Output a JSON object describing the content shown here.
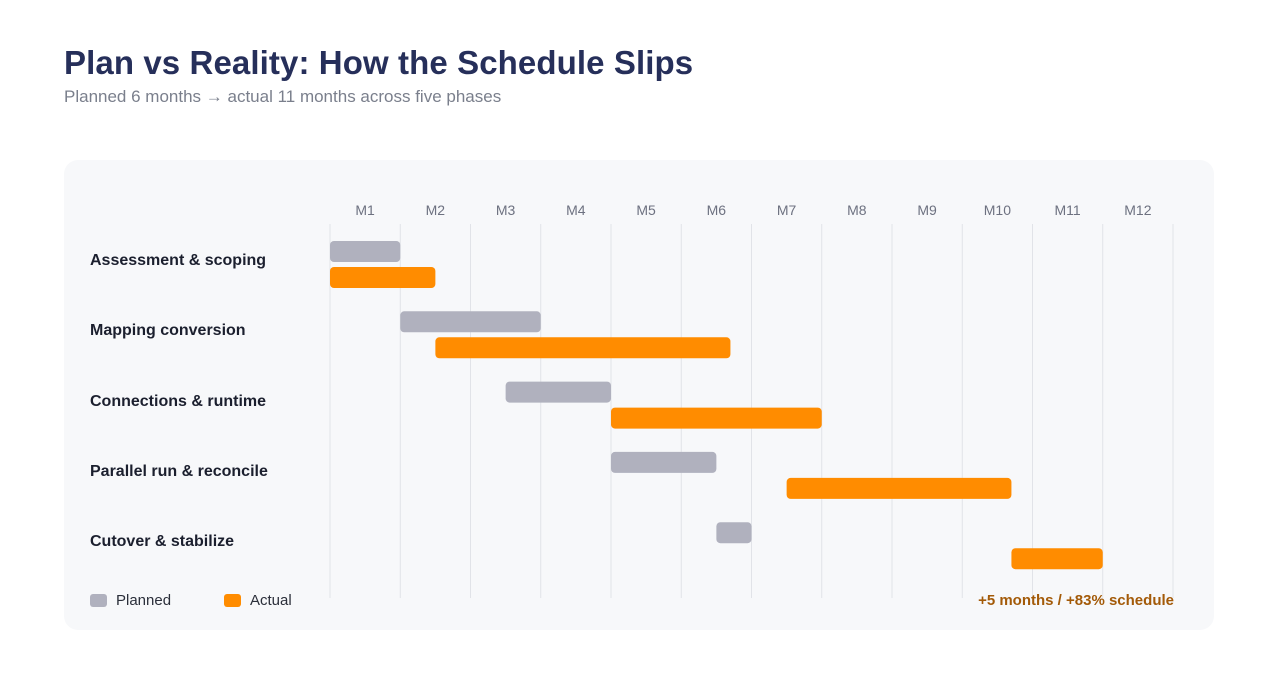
{
  "title": "Plan vs Reality: How the Schedule Slips",
  "subtitle": "Planned 6 months → actual 11 months across five phases",
  "summary": "+5 months / +83% schedule",
  "colors": {
    "planned": "#b0b1be",
    "actual": "#ff8c00",
    "grid": "#e1e3e8",
    "summary": "#a35a08"
  },
  "legend": [
    {
      "label": "Planned",
      "color": "#b0b1be"
    },
    {
      "label": "Actual",
      "color": "#ff8c00"
    }
  ],
  "chart_data": {
    "type": "gantt",
    "x_unit": "month",
    "xlim": [
      0,
      12
    ],
    "months": [
      "M1",
      "M2",
      "M3",
      "M4",
      "M5",
      "M6",
      "M7",
      "M8",
      "M9",
      "M10",
      "M11",
      "M12"
    ],
    "grid": true,
    "legend_position": "bottom-left",
    "phases": [
      {
        "name": "Assessment & scoping",
        "planned": [
          0,
          1
        ],
        "actual": [
          0,
          1.5
        ]
      },
      {
        "name": "Mapping conversion",
        "planned": [
          1,
          3
        ],
        "actual": [
          1.5,
          5.7
        ]
      },
      {
        "name": "Connections & runtime",
        "planned": [
          2.5,
          4
        ],
        "actual": [
          4,
          7
        ]
      },
      {
        "name": "Parallel run & reconcile",
        "planned": [
          4,
          5.5
        ],
        "actual": [
          6.5,
          9.7
        ]
      },
      {
        "name": "Cutover & stabilize",
        "planned": [
          5.5,
          6
        ],
        "actual": [
          9.7,
          11
        ]
      }
    ]
  }
}
